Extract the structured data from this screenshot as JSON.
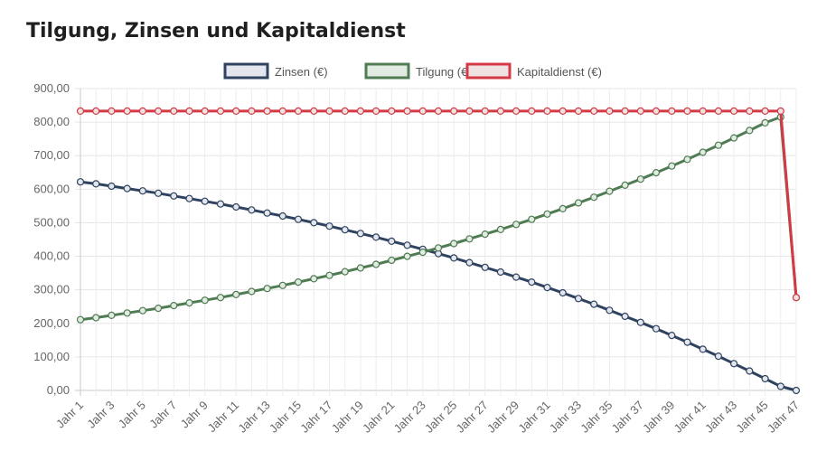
{
  "page": {
    "title": "Tilgung, Zinsen und Kapitaldienst"
  },
  "chart_data": {
    "type": "line",
    "title": "Tilgung, Zinsen und Kapitaldienst",
    "xlabel": "",
    "ylabel": "",
    "ylim": [
      0,
      900
    ],
    "yticks": [
      0,
      100,
      200,
      300,
      400,
      500,
      600,
      700,
      800,
      900
    ],
    "ytick_labels": [
      "0,00",
      "100,00",
      "200,00",
      "300,00",
      "400,00",
      "500,00",
      "600,00",
      "700,00",
      "800,00",
      "900,00"
    ],
    "categories": [
      "Jahr 1",
      "Jahr 2",
      "Jahr 3",
      "Jahr 4",
      "Jahr 5",
      "Jahr 6",
      "Jahr 7",
      "Jahr 8",
      "Jahr 9",
      "Jahr 10",
      "Jahr 11",
      "Jahr 12",
      "Jahr 13",
      "Jahr 14",
      "Jahr 15",
      "Jahr 16",
      "Jahr 17",
      "Jahr 18",
      "Jahr 19",
      "Jahr 20",
      "Jahr 21",
      "Jahr 22",
      "Jahr 23",
      "Jahr 24",
      "Jahr 25",
      "Jahr 26",
      "Jahr 27",
      "Jahr 28",
      "Jahr 29",
      "Jahr 30",
      "Jahr 31",
      "Jahr 32",
      "Jahr 33",
      "Jahr 34",
      "Jahr 35",
      "Jahr 36",
      "Jahr 37",
      "Jahr 38",
      "Jahr 39",
      "Jahr 40",
      "Jahr 41",
      "Jahr 42",
      "Jahr 43",
      "Jahr 44",
      "Jahr 45",
      "Jahr 46",
      "Jahr 47"
    ],
    "legend_position": "top-center",
    "grid": true,
    "series": [
      {
        "name": "Zinsen (€)",
        "color": "#2f4360",
        "fill": "#e3e6ec",
        "values": [
          622,
          616,
          609,
          602,
          595,
          588,
          580,
          572,
          564,
          556,
          547,
          538,
          529,
          520,
          510,
          500,
          490,
          479,
          468,
          457,
          445,
          433,
          421,
          408,
          395,
          381,
          367,
          353,
          338,
          323,
          307,
          291,
          274,
          257,
          239,
          221,
          203,
          184,
          164,
          144,
          123,
          102,
          80,
          58,
          35,
          12,
          0
        ]
      },
      {
        "name": "Tilgung (€)",
        "color": "#4f7c52",
        "fill": "#e2ebe2",
        "values": [
          211,
          217,
          224,
          231,
          238,
          245,
          253,
          261,
          269,
          277,
          286,
          295,
          304,
          313,
          323,
          333,
          343,
          354,
          365,
          376,
          388,
          400,
          412,
          425,
          438,
          452,
          466,
          480,
          495,
          510,
          526,
          542,
          559,
          576,
          594,
          612,
          630,
          649,
          669,
          689,
          710,
          731,
          753,
          775,
          798,
          815,
          277
        ]
      },
      {
        "name": "Kapitaldienst (€)",
        "color": "#d43a45",
        "fill": "#f0e2e3",
        "values": [
          833,
          833,
          833,
          833,
          833,
          833,
          833,
          833,
          833,
          833,
          833,
          833,
          833,
          833,
          833,
          833,
          833,
          833,
          833,
          833,
          833,
          833,
          833,
          833,
          833,
          833,
          833,
          833,
          833,
          833,
          833,
          833,
          833,
          833,
          833,
          833,
          833,
          833,
          833,
          833,
          833,
          833,
          833,
          833,
          833,
          833,
          277
        ]
      }
    ]
  }
}
